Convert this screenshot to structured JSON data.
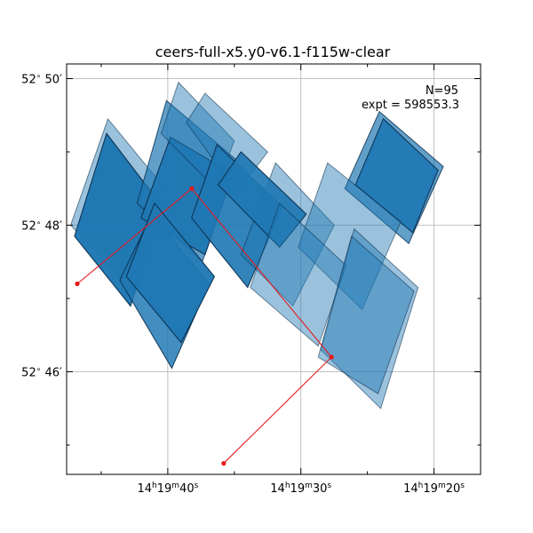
{
  "chart_data": {
    "type": "footprint-map",
    "title": "ceers-full-x5.y0-v6.1-f115w-clear",
    "annotations": {
      "n": "N=95",
      "expt": "expt = 598553.3"
    },
    "x_axis": {
      "quantity": "Right Ascension (seconds of 14h19m)",
      "direction": "decreasing to the right",
      "range": [
        47.6,
        16.5
      ],
      "major_ticks": [
        {
          "value": 40,
          "label_main": "14",
          "h": "h",
          "mid": "19",
          "m": "m",
          "sec": "40",
          "s": "s"
        },
        {
          "value": 30,
          "label_main": "14",
          "h": "h",
          "mid": "19",
          "m": "m",
          "sec": "30",
          "s": "s"
        },
        {
          "value": 20,
          "label_main": "14",
          "h": "h",
          "mid": "19",
          "m": "m",
          "sec": "20",
          "s": "s"
        }
      ],
      "minor_ticks": [
        45,
        35,
        25
      ]
    },
    "y_axis": {
      "quantity": "Declination (arcminutes past 52°)",
      "range": [
        44.6,
        50.2
      ],
      "major_ticks": [
        {
          "value": 50,
          "deg": "52",
          "degsym": "∘",
          "min": "50",
          "arcmin": "′"
        },
        {
          "value": 48,
          "deg": "52",
          "degsym": "∘",
          "min": "48",
          "arcmin": "′"
        },
        {
          "value": 46,
          "deg": "52",
          "degsym": "∘",
          "min": "46",
          "arcmin": "′"
        }
      ],
      "minor_ticks": [
        49,
        47,
        45
      ]
    },
    "grid": true,
    "colors": {
      "footprint_fill": "#1f77b4",
      "footprint_edge": "#0b2b48",
      "path": "#e41a1c",
      "grid": "#b0b0b0"
    },
    "footprints": [
      {
        "corners": [
          [
            44.5,
            49.45
          ],
          [
            40.2,
            48.5
          ],
          [
            42.6,
            47.1
          ],
          [
            47.3,
            48.0
          ]
        ],
        "stack": 1
      },
      {
        "corners": [
          [
            44.6,
            49.25
          ],
          [
            40.4,
            48.25
          ],
          [
            42.8,
            46.9
          ],
          [
            47.0,
            47.85
          ]
        ],
        "stack": 6
      },
      {
        "corners": [
          [
            40.1,
            49.7
          ],
          [
            34.9,
            48.9
          ],
          [
            37.4,
            47.5
          ],
          [
            42.3,
            48.3
          ]
        ],
        "stack": 2
      },
      {
        "corners": [
          [
            39.8,
            49.2
          ],
          [
            35.1,
            48.7
          ],
          [
            37.2,
            47.6
          ],
          [
            42.0,
            48.1
          ]
        ],
        "stack": 5
      },
      {
        "corners": [
          [
            39.2,
            49.95
          ],
          [
            35.0,
            49.15
          ],
          [
            36.4,
            48.5
          ],
          [
            40.5,
            49.25
          ]
        ],
        "stack": 1
      },
      {
        "corners": [
          [
            37.2,
            49.8
          ],
          [
            32.5,
            49.0
          ],
          [
            34.8,
            48.45
          ],
          [
            38.6,
            49.4
          ]
        ],
        "stack": 1
      },
      {
        "corners": [
          [
            41.2,
            48.15
          ],
          [
            36.9,
            47.2
          ],
          [
            39.7,
            46.05
          ],
          [
            43.6,
            47.25
          ]
        ],
        "stack": 3
      },
      {
        "corners": [
          [
            41.0,
            48.3
          ],
          [
            36.5,
            47.3
          ],
          [
            39.0,
            46.4
          ],
          [
            43.1,
            47.3
          ]
        ],
        "stack": 5
      },
      {
        "corners": [
          [
            36.3,
            49.1
          ],
          [
            31.4,
            48.25
          ],
          [
            34.0,
            47.15
          ],
          [
            38.2,
            48.1
          ]
        ],
        "stack": 4
      },
      {
        "corners": [
          [
            31.9,
            48.85
          ],
          [
            27.5,
            48.0
          ],
          [
            30.6,
            46.9
          ],
          [
            34.5,
            47.6
          ]
        ],
        "stack": 1
      },
      {
        "corners": [
          [
            34.5,
            49.0
          ],
          [
            29.6,
            48.15
          ],
          [
            31.6,
            47.7
          ],
          [
            36.2,
            48.55
          ]
        ],
        "stack": 4
      },
      {
        "corners": [
          [
            24.1,
            49.55
          ],
          [
            19.3,
            48.8
          ],
          [
            21.9,
            47.75
          ],
          [
            26.7,
            48.5
          ]
        ],
        "stack": 2
      },
      {
        "corners": [
          [
            23.8,
            49.45
          ],
          [
            19.7,
            48.75
          ],
          [
            21.6,
            47.9
          ],
          [
            25.9,
            48.55
          ]
        ],
        "stack": 4
      },
      {
        "corners": [
          [
            28.0,
            48.85
          ],
          [
            22.5,
            48.05
          ],
          [
            25.4,
            46.85
          ],
          [
            30.2,
            47.7
          ]
        ],
        "stack": 1
      },
      {
        "corners": [
          [
            31.6,
            48.3
          ],
          [
            26.6,
            47.45
          ],
          [
            28.7,
            46.35
          ],
          [
            33.8,
            47.15
          ]
        ],
        "stack": 1
      },
      {
        "corners": [
          [
            26.0,
            47.95
          ],
          [
            21.2,
            47.15
          ],
          [
            24.0,
            45.5
          ],
          [
            28.5,
            46.3
          ]
        ],
        "stack": 1
      },
      {
        "corners": [
          [
            26.2,
            47.85
          ],
          [
            21.5,
            47.1
          ],
          [
            24.2,
            45.7
          ],
          [
            28.7,
            46.2
          ]
        ],
        "stack": 1
      }
    ],
    "path_points": [
      {
        "x": 46.8,
        "y": 47.2
      },
      {
        "x": 38.2,
        "y": 48.5
      },
      {
        "x": 27.7,
        "y": 46.2
      },
      {
        "x": 35.8,
        "y": 44.75
      }
    ]
  }
}
